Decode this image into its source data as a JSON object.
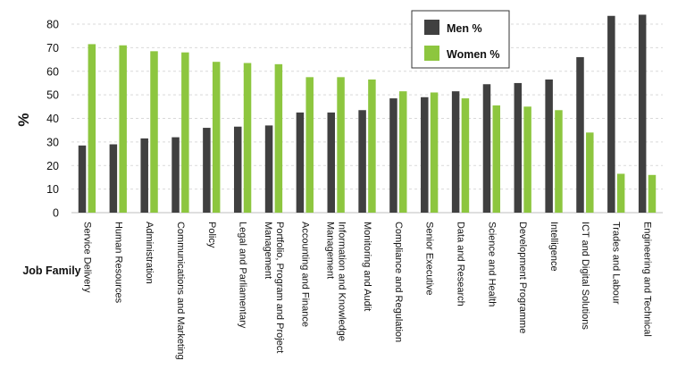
{
  "chart_data": {
    "type": "bar",
    "ylabel": "%",
    "xlabel": "Job Family",
    "ylim": [
      0,
      80
    ],
    "y_ticks": [
      "0",
      "10",
      "20",
      "30",
      "40",
      "50",
      "60",
      "70",
      "80"
    ],
    "y_tick_values": [
      0,
      10,
      20,
      30,
      40,
      50,
      60,
      70,
      80
    ],
    "grid": "horizontal dashed",
    "legend_position": "top-right",
    "categories": [
      "Service Delivery",
      "Human Resources",
      "Administration",
      "Communications and Marketing",
      "Policy",
      "Legal and Parliamentary",
      "Portfolio, Program and Project Management",
      "Accounting and Finance",
      "Information and Knowledge Management",
      "Monitoring and Audit",
      "Compliance and Regulation",
      "Senior Executive",
      "Data and Research",
      "Science and Health",
      "Development Programme",
      "Intelligence",
      "ICT and Digital Solutions",
      "Trades and Labour",
      "Engineering and Technical"
    ],
    "category_lines": [
      [
        "Service Delivery"
      ],
      [
        "Human Resources"
      ],
      [
        "Administration"
      ],
      [
        "Communications and Marketing"
      ],
      [
        "Policy"
      ],
      [
        "Legal and Parliamentary"
      ],
      [
        "Portfolio, Program and Project",
        "Management"
      ],
      [
        "Accounting and Finance"
      ],
      [
        "Information and Knowledge",
        "Management"
      ],
      [
        "Monitoring and Audit"
      ],
      [
        "Compliance and Regulation"
      ],
      [
        "Senior Executive"
      ],
      [
        "Data and Research"
      ],
      [
        "Science and Health"
      ],
      [
        "Development Programme"
      ],
      [
        "Intelligence"
      ],
      [
        "ICT and Digital Solutions"
      ],
      [
        "Trades and Labour"
      ],
      [
        "Engineering and Technical"
      ]
    ],
    "series": [
      {
        "name": "Men %",
        "color": "#404040",
        "values": [
          28.5,
          29,
          31.5,
          32,
          36,
          36.5,
          37,
          42.5,
          42.5,
          43.5,
          48.5,
          49,
          51.5,
          54.5,
          55,
          56.5,
          66,
          83.5,
          84
        ]
      },
      {
        "name": "Women %",
        "color": "#8dc63f",
        "values": [
          71.5,
          71,
          68.5,
          68,
          64,
          63.5,
          63,
          57.5,
          57.5,
          56.5,
          51.5,
          51,
          48.5,
          45.5,
          45,
          43.5,
          34,
          16.5,
          16
        ]
      }
    ]
  }
}
